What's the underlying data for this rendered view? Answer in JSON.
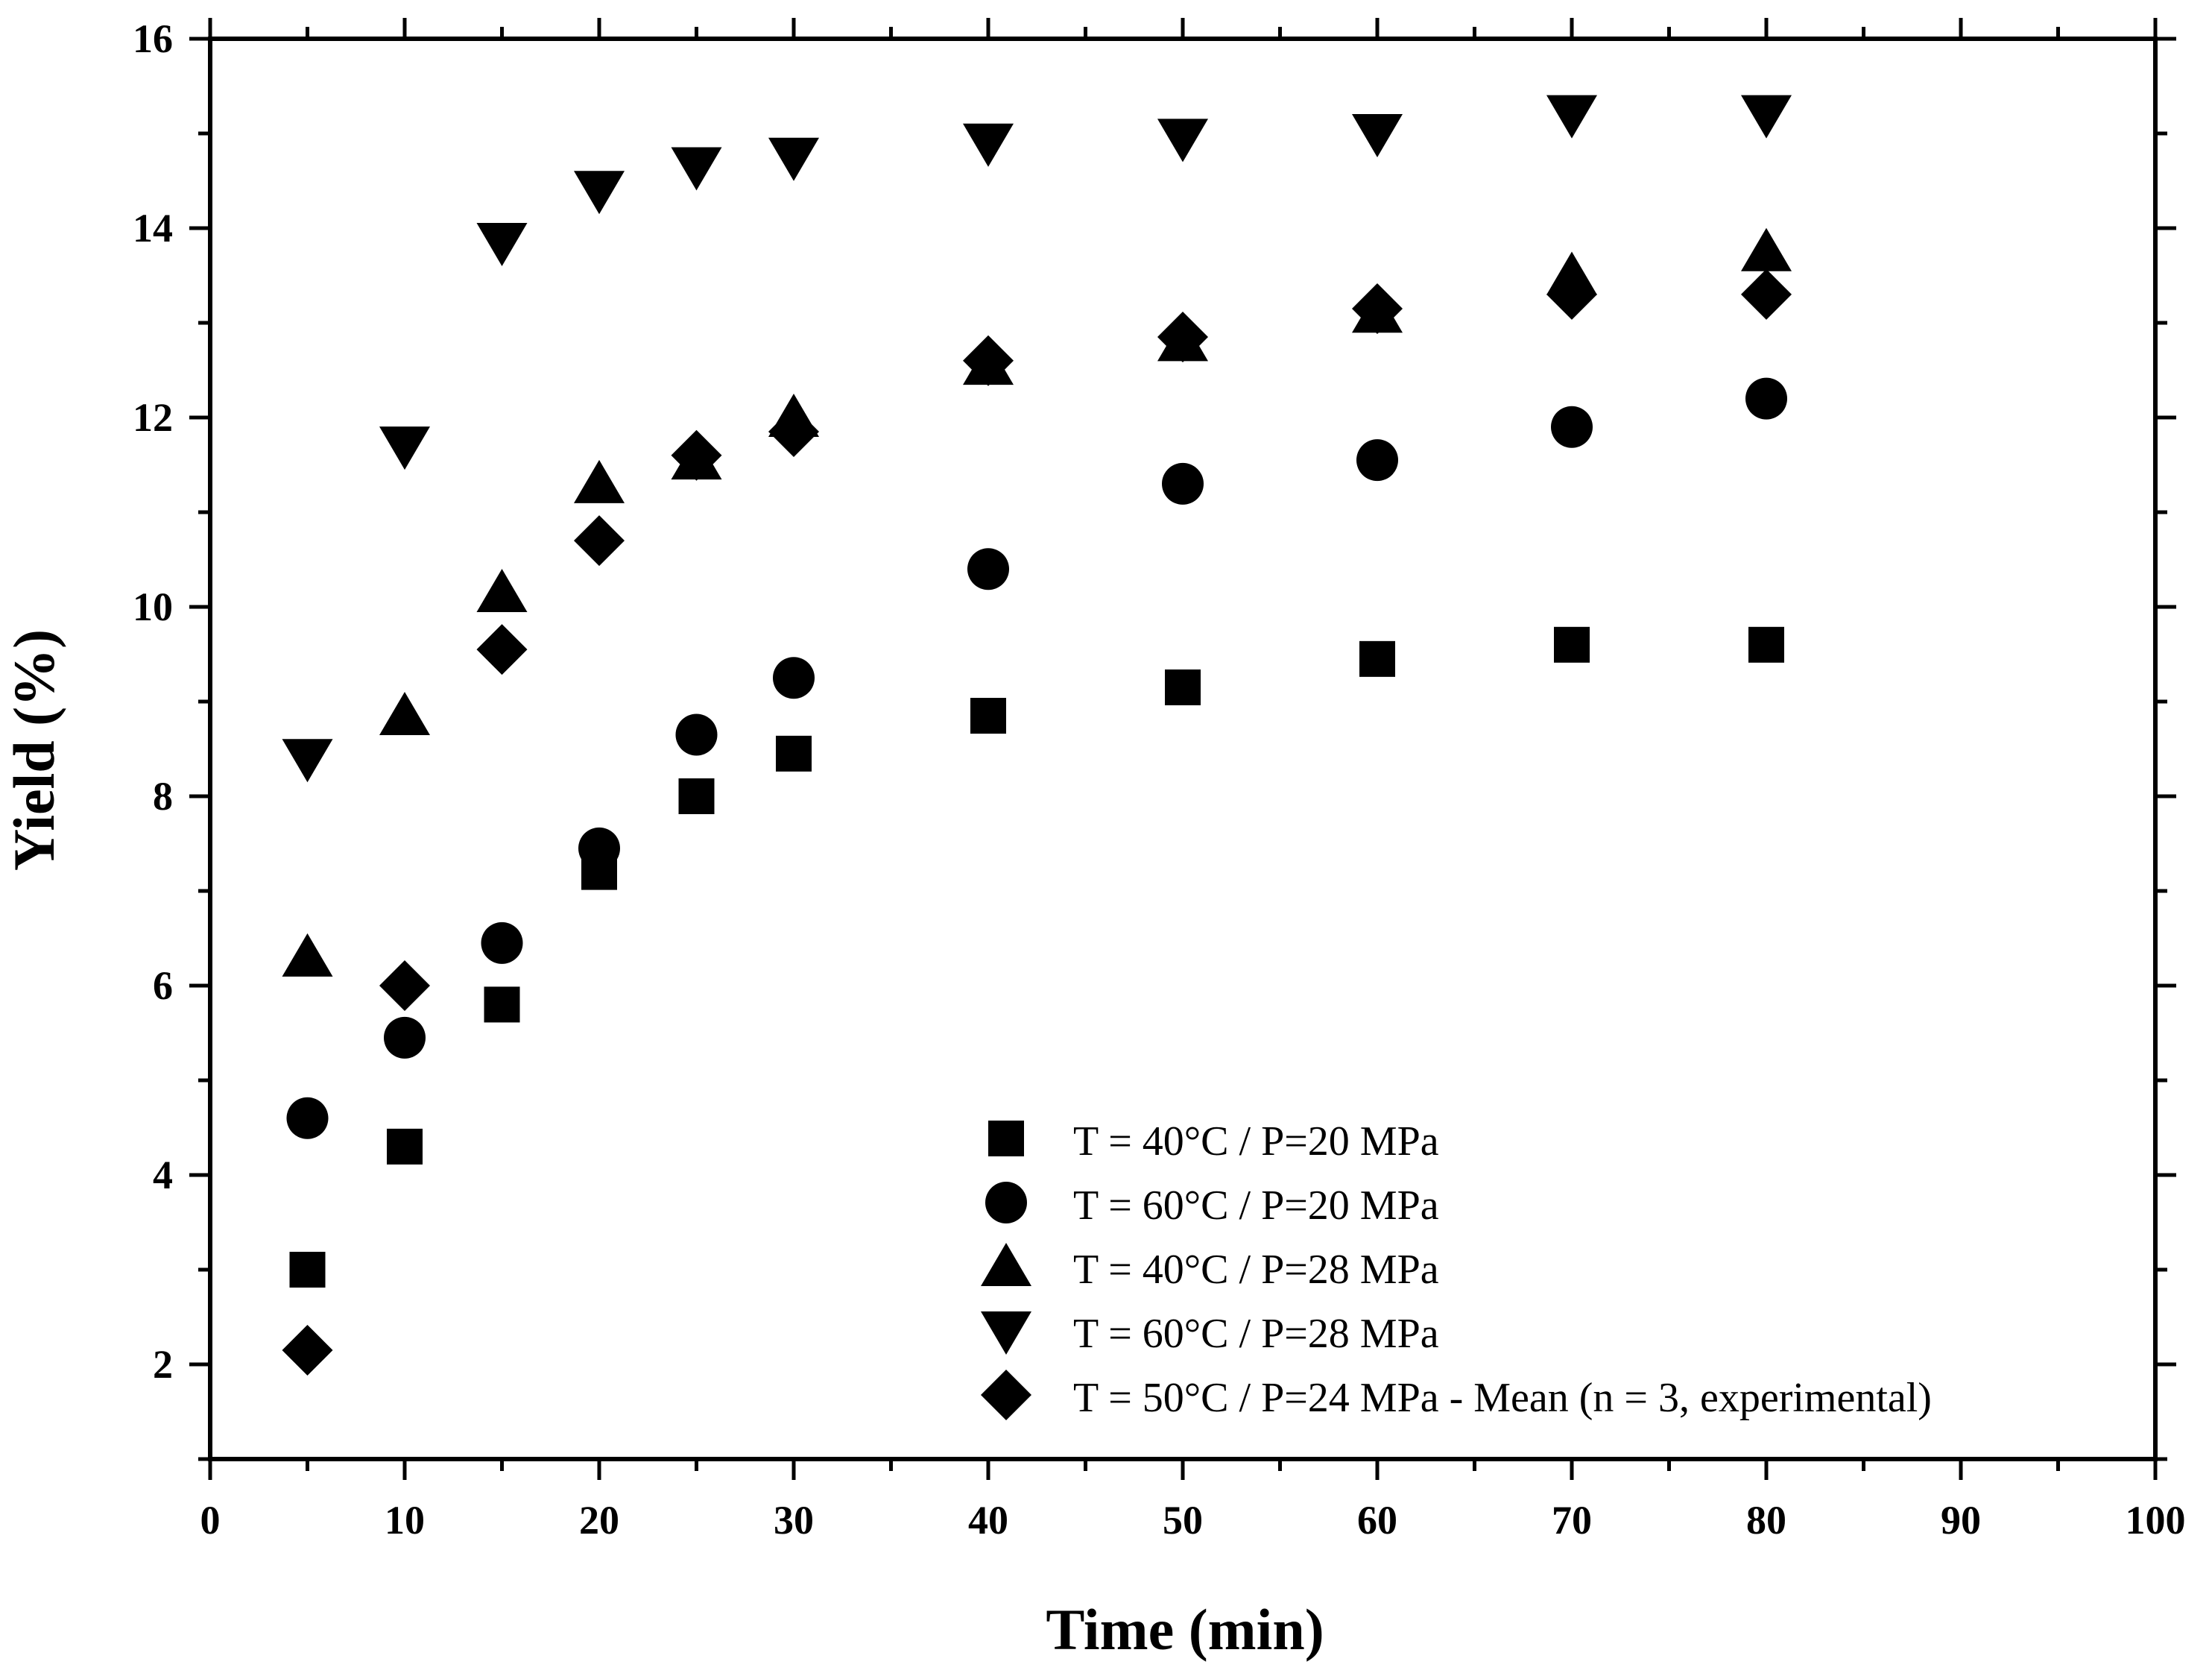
{
  "chart_data": {
    "type": "scatter",
    "title": "",
    "xlabel": "Time (min)",
    "ylabel": "Yield (%)",
    "xlim": [
      0,
      100
    ],
    "ylim": [
      1,
      16
    ],
    "xticks": [
      0,
      10,
      20,
      30,
      40,
      50,
      60,
      70,
      80,
      90,
      100
    ],
    "yticks": [
      2,
      4,
      6,
      8,
      10,
      12,
      14,
      16
    ],
    "legend_position": "bottom-right",
    "x": [
      5,
      10,
      15,
      20,
      25,
      30,
      40,
      50,
      60,
      70,
      80
    ],
    "series": [
      {
        "name": "T = 40°C / P=20 MPa",
        "marker": "square",
        "values": [
          3.0,
          4.3,
          5.8,
          7.2,
          8.0,
          8.45,
          8.85,
          9.15,
          9.45,
          9.6,
          9.6
        ]
      },
      {
        "name": "T = 60°C / P=20 MPa",
        "marker": "circle",
        "values": [
          4.6,
          5.45,
          6.45,
          7.45,
          8.65,
          9.25,
          10.4,
          11.3,
          11.55,
          11.9,
          12.2
        ]
      },
      {
        "name": "T = 40°C / P=28 MPa",
        "marker": "triangle-up",
        "values": [
          6.3,
          8.85,
          10.15,
          11.3,
          11.55,
          12.0,
          12.55,
          12.8,
          13.1,
          13.5,
          13.75
        ]
      },
      {
        "name": "T = 60°C / P=28 MPa",
        "marker": "triangle-down",
        "values": [
          8.4,
          11.7,
          13.85,
          14.4,
          14.65,
          14.75,
          14.9,
          14.95,
          15.0,
          15.2,
          15.2
        ]
      },
      {
        "name": "T = 50°C / P=24 MPa - Mean (n = 3, experimental)",
        "marker": "diamond",
        "values": [
          2.15,
          6.0,
          9.55,
          10.7,
          11.6,
          11.85,
          12.6,
          12.85,
          13.15,
          13.3,
          13.3
        ]
      }
    ],
    "color": "#000000"
  }
}
